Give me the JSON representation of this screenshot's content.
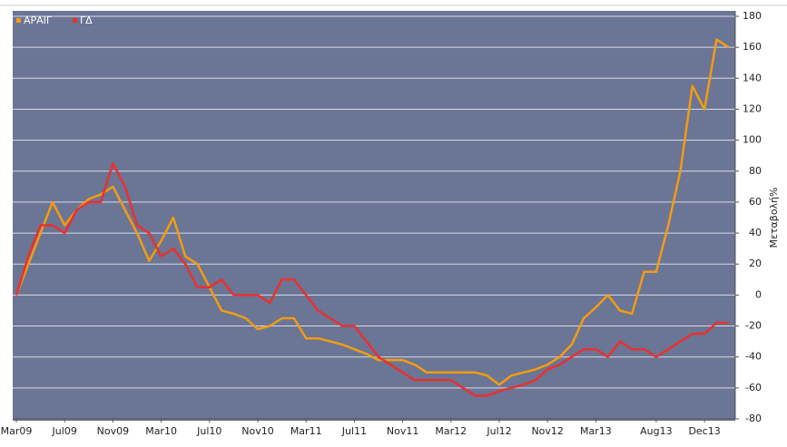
{
  "chart_data": {
    "type": "line",
    "y_axis_label": "Μεταβολή%",
    "categories": [
      "Mar09",
      null,
      null,
      null,
      "Jul09",
      null,
      null,
      null,
      "Nov09",
      null,
      null,
      null,
      "Mar10",
      null,
      null,
      null,
      "Jul10",
      null,
      null,
      null,
      "Nov10",
      null,
      null,
      null,
      "Mar11",
      null,
      null,
      null,
      "Jul11",
      null,
      null,
      null,
      "Nov11",
      null,
      null,
      null,
      "Mar12",
      null,
      null,
      null,
      "Jul12",
      null,
      null,
      null,
      "Nov12",
      null,
      null,
      null,
      "Mar13",
      null,
      null,
      null,
      null,
      "Aug13",
      null,
      null,
      null,
      "Dec13",
      null,
      null
    ],
    "series": [
      {
        "name": "ΑΡΑΙΓ",
        "color": "#f39c12",
        "values": [
          0,
          20,
          40,
          60,
          45,
          55,
          62,
          65,
          70,
          55,
          40,
          22,
          35,
          50,
          25,
          20,
          5,
          -10,
          -12,
          -15,
          -22,
          -20,
          -15,
          -15,
          -28,
          -28,
          -30,
          -32,
          -35,
          -38,
          -42,
          -42,
          -42,
          -45,
          -50,
          -50,
          -50,
          -50,
          -50,
          -52,
          -58,
          -52,
          -50,
          -48,
          -45,
          -40,
          -32,
          -15,
          -8,
          0,
          -10,
          -12,
          15,
          15,
          45,
          80,
          135,
          120,
          165,
          160
        ]
      },
      {
        "name": "ΓΔ",
        "color": "#e8312f",
        "values": [
          0,
          25,
          45,
          45,
          40,
          55,
          60,
          60,
          85,
          70,
          45,
          40,
          25,
          30,
          20,
          5,
          5,
          10,
          0,
          0,
          0,
          -5,
          10,
          10,
          0,
          -10,
          -15,
          -20,
          -20,
          -30,
          -40,
          -45,
          -50,
          -55,
          -55,
          -55,
          -55,
          -60,
          -65,
          -65,
          -62,
          -60,
          -58,
          -55,
          -48,
          -45,
          -40,
          -35,
          -35,
          -40,
          -30,
          -35,
          -35,
          -40,
          -35,
          -30,
          -25,
          -25,
          -18,
          -18
        ]
      }
    ],
    "ylim": [
      -80,
      180
    ],
    "yticks": [
      -80,
      -60,
      -40,
      -20,
      0,
      20,
      40,
      60,
      80,
      100,
      120,
      140,
      160,
      180
    ],
    "grid": true,
    "legend": "top-left",
    "background": "#6b7595"
  }
}
